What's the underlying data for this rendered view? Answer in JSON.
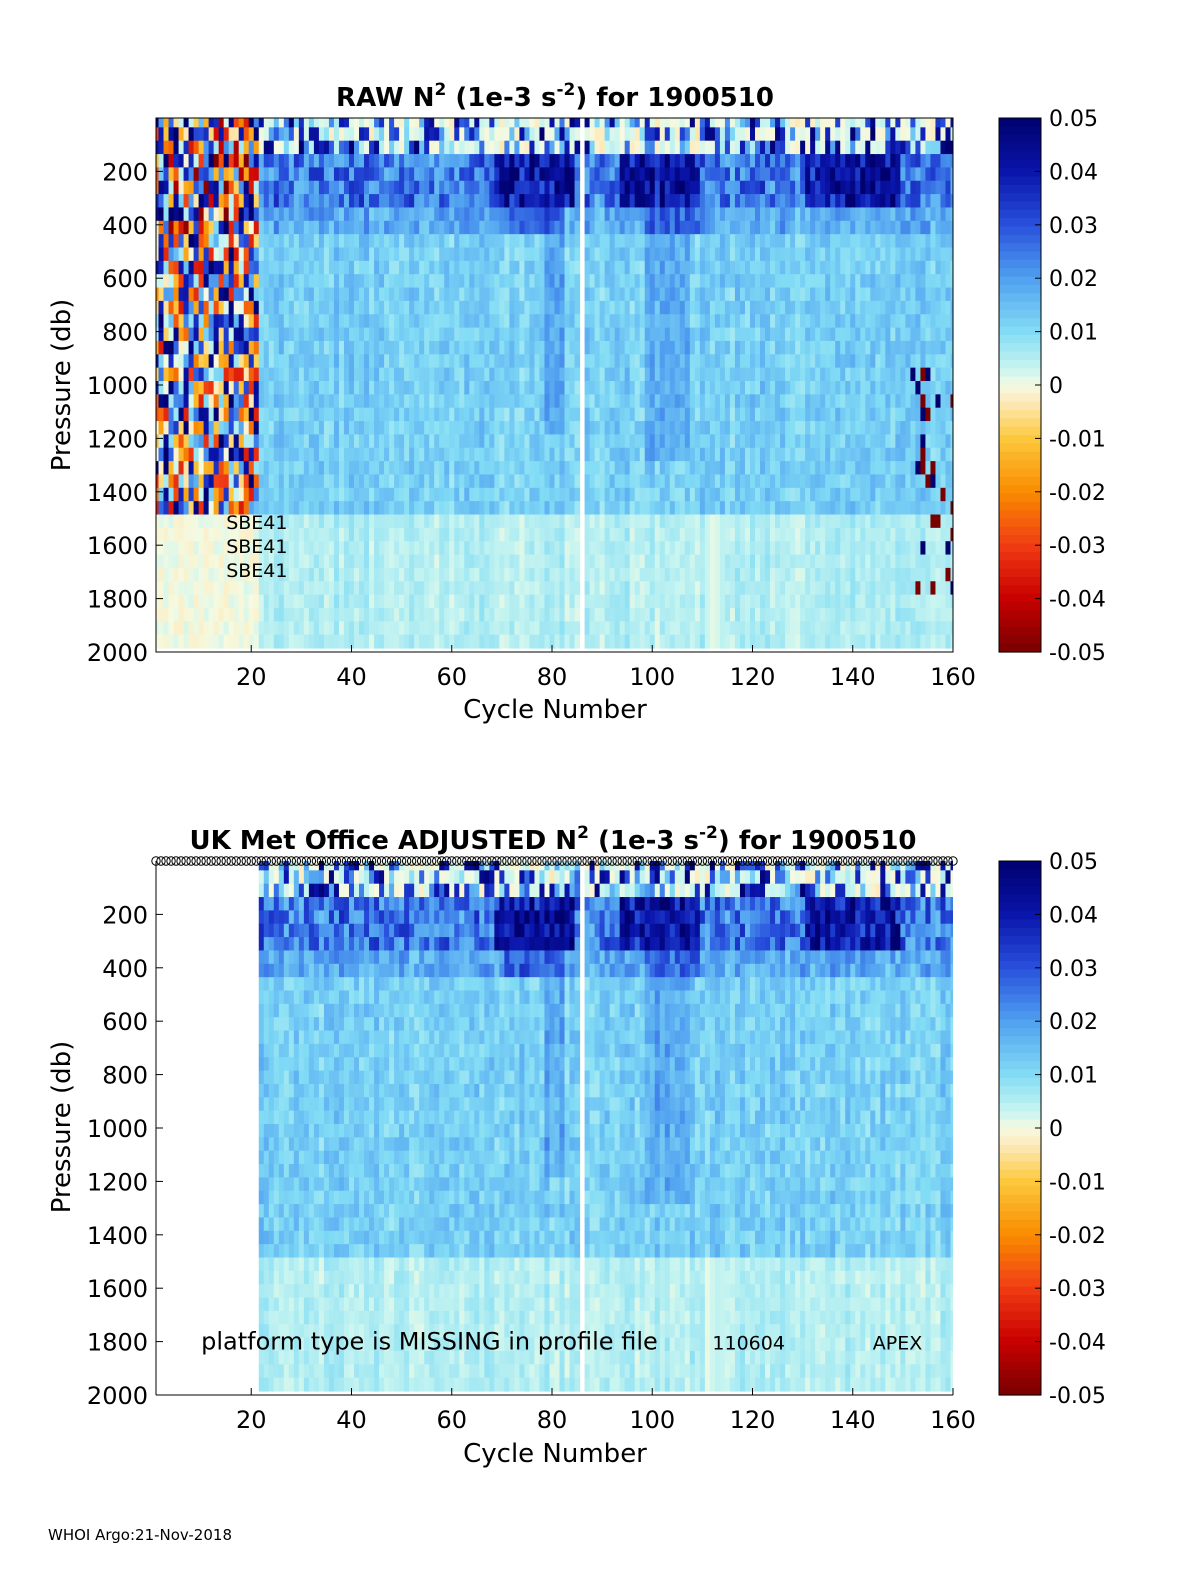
{
  "chart_data": [
    {
      "type": "heatmap",
      "title_parts": {
        "pre": "RAW N",
        "sup1": "2",
        "mid": " (1e-3 s",
        "sup2": "-2",
        "post": ") for 1900510"
      },
      "xlabel": "Cycle Number",
      "ylabel": "Pressure (db)",
      "xlim": [
        1,
        160
      ],
      "ylim": [
        2000,
        0
      ],
      "xticks": [
        20,
        40,
        60,
        80,
        100,
        120,
        140,
        160
      ],
      "yticks": [
        200,
        400,
        600,
        800,
        1000,
        1200,
        1400,
        1600,
        1800,
        2000
      ],
      "colorbar": {
        "range": [
          -0.05,
          0.05
        ],
        "ticks": [
          "0.05",
          "0.04",
          "0.03",
          "0.02",
          "0.01",
          "0",
          "-0.01",
          "-0.02",
          "-0.03",
          "-0.04",
          "-0.05"
        ]
      },
      "annotations": [
        {
          "text": "SBE41",
          "x": 15,
          "y": 1510
        },
        {
          "text": "SBE41",
          "x": 15,
          "y": 1600
        },
        {
          "text": "SBE41",
          "x": 15,
          "y": 1690
        }
      ],
      "noisy_cycles": [
        1,
        21
      ],
      "missing_cycle": 86
    },
    {
      "type": "heatmap",
      "title_parts": {
        "pre": "UK Met Office  ADJUSTED N",
        "sup1": "2",
        "mid": " (1e-3 s",
        "sup2": "-2",
        "post": ") for 1900510"
      },
      "xlabel": "Cycle Number",
      "ylabel": "Pressure (db)",
      "xlim": [
        1,
        160
      ],
      "ylim": [
        2000,
        0
      ],
      "xticks": [
        20,
        40,
        60,
        80,
        100,
        120,
        140,
        160
      ],
      "yticks": [
        200,
        400,
        600,
        800,
        1000,
        1200,
        1400,
        1600,
        1800,
        2000
      ],
      "colorbar": {
        "range": [
          -0.05,
          0.05
        ],
        "ticks": [
          "0.05",
          "0.04",
          "0.03",
          "0.02",
          "0.01",
          "0",
          "-0.01",
          "-0.02",
          "-0.03",
          "-0.04",
          "-0.05"
        ]
      },
      "annotations": [
        {
          "text": "platform type is MISSING in profile file",
          "x": 10,
          "y": 1800
        },
        {
          "text": "110604",
          "x": 112,
          "y": 1800
        },
        {
          "text": "APEX",
          "x": 144,
          "y": 1800
        }
      ],
      "data_start_cycle": 22,
      "missing_cycle": 86,
      "marker_row_pressure": 0
    }
  ],
  "footer": {
    "text": "WHOI Argo:21-Nov-2018"
  }
}
